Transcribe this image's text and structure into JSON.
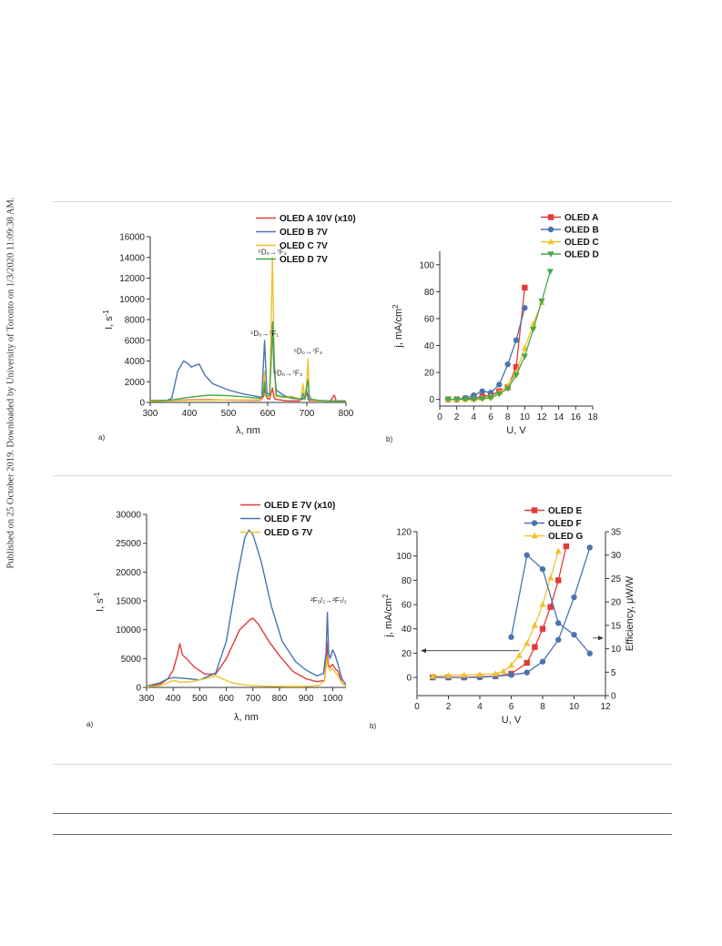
{
  "sidebar_note": "Published on 25 October 2019. Downloaded by University of Toronto on 1/3/2020 11:09:38 AM.",
  "colors": {
    "A": "#e23a3a",
    "B": "#4a74b0",
    "C": "#f2c12e",
    "D": "#45a84a",
    "E": "#e23a3a",
    "F": "#4a74b0",
    "G": "#f2c12e",
    "rule": "#d8dcc8",
    "rule_dark": "#6a6a6a"
  },
  "chart_data": [
    {
      "type": "line",
      "panel_label": "a)",
      "xlabel": "λ, nm",
      "ylabel_base": "I, s",
      "ylabel_sup": "-1",
      "xlim": [
        300,
        800
      ],
      "ylim": [
        0,
        16000
      ],
      "xticks": [
        300,
        400,
        500,
        600,
        700,
        800
      ],
      "yticks": [
        0,
        2000,
        4000,
        6000,
        8000,
        10000,
        12000,
        14000,
        16000
      ],
      "legend": [
        "OLED A 10V (x10)",
        "OLED B 7V",
        "OLED C 7V",
        "OLED D 7V"
      ],
      "annotations": [
        {
          "pre": "⁵D₀→⁷F₂",
          "x": 612,
          "y": 14300
        },
        {
          "pre": "⁵D₀→⁷F₁",
          "x": 592,
          "y": 6400
        },
        {
          "pre": "⁵D₀→⁷F₃",
          "x": 652,
          "y": 2600
        },
        {
          "pre": "⁵D₀→⁷F₄",
          "x": 703,
          "y": 4700
        }
      ],
      "series": [
        {
          "name": "OLED A 10V (x10)",
          "key": "A",
          "x": [
            300,
            350,
            400,
            450,
            500,
            550,
            580,
            590,
            594,
            598,
            605,
            612,
            616,
            620,
            650,
            680,
            690,
            700,
            705,
            720,
            760,
            770,
            775,
            800
          ],
          "y": [
            100,
            180,
            250,
            260,
            230,
            200,
            200,
            600,
            1900,
            400,
            300,
            1400,
            500,
            300,
            150,
            150,
            400,
            800,
            200,
            150,
            150,
            700,
            150,
            120
          ]
        },
        {
          "name": "OLED B 7V",
          "key": "B",
          "x": [
            300,
            340,
            355,
            370,
            385,
            395,
            405,
            415,
            425,
            440,
            460,
            500,
            540,
            570,
            585,
            592,
            598,
            605,
            612,
            616,
            622,
            640,
            660,
            690,
            700,
            705,
            720,
            760,
            800
          ],
          "y": [
            150,
            150,
            400,
            3000,
            4000,
            3800,
            3400,
            3600,
            3700,
            2600,
            1800,
            1200,
            800,
            600,
            500,
            6000,
            900,
            800,
            7500,
            3200,
            1200,
            700,
            400,
            300,
            1100,
            300,
            200,
            150,
            150
          ]
        },
        {
          "name": "OLED C 7V",
          "key": "C",
          "x": [
            300,
            350,
            400,
            450,
            500,
            550,
            580,
            588,
            592,
            596,
            605,
            609,
            612,
            616,
            620,
            640,
            660,
            685,
            690,
            695,
            700,
            703,
            706,
            712,
            730,
            760,
            800
          ],
          "y": [
            100,
            150,
            200,
            220,
            250,
            250,
            250,
            800,
            3000,
            500,
            500,
            8000,
            14000,
            6000,
            600,
            500,
            600,
            300,
            1800,
            400,
            2200,
            4200,
            800,
            200,
            150,
            120,
            100
          ]
        },
        {
          "name": "OLED D 7V",
          "key": "D",
          "x": [
            300,
            350,
            400,
            450,
            500,
            550,
            580,
            588,
            592,
            596,
            605,
            610,
            613,
            617,
            622,
            645,
            655,
            685,
            690,
            695,
            700,
            703,
            706,
            712,
            730,
            760,
            800
          ],
          "y": [
            200,
            200,
            500,
            700,
            650,
            500,
            400,
            700,
            2000,
            600,
            700,
            5000,
            7800,
            3500,
            700,
            500,
            500,
            300,
            900,
            300,
            1500,
            2200,
            600,
            300,
            200,
            150,
            150
          ]
        }
      ]
    },
    {
      "type": "line",
      "panel_label": "b)",
      "xlabel": "U, V",
      "ylabel_base": "j, mA/cm",
      "ylabel_sup": "2",
      "xlim": [
        0,
        18
      ],
      "ylim": [
        -5,
        110
      ],
      "xticks": [
        0,
        2,
        4,
        6,
        8,
        10,
        12,
        14,
        16,
        18
      ],
      "yticks": [
        0,
        20,
        40,
        60,
        80,
        100
      ],
      "legend": [
        "OLED A",
        "OLED B",
        "OLED C",
        "OLED D"
      ],
      "series": [
        {
          "name": "OLED A",
          "key": "A",
          "marker": "square",
          "x": [
            1,
            2,
            3,
            4,
            5,
            6,
            7,
            8,
            9,
            10
          ],
          "y": [
            0,
            0,
            0.5,
            1,
            2,
            3,
            6,
            9,
            24,
            83
          ]
        },
        {
          "name": "OLED B",
          "key": "B",
          "marker": "circle",
          "x": [
            1,
            2,
            3,
            4,
            5,
            6,
            7,
            8,
            9,
            10
          ],
          "y": [
            0,
            0,
            1,
            3,
            6,
            5,
            11,
            26,
            44,
            68
          ]
        },
        {
          "name": "OLED C",
          "key": "C",
          "marker": "triangle-up",
          "x": [
            1,
            2,
            3,
            4,
            5,
            6,
            7,
            8,
            9,
            10,
            11,
            12
          ],
          "y": [
            0,
            0,
            0,
            0,
            1,
            2,
            5,
            10,
            20,
            38,
            56,
            72
          ]
        },
        {
          "name": "OLED D",
          "key": "D",
          "marker": "triangle-down",
          "x": [
            1,
            2,
            3,
            4,
            5,
            6,
            7,
            8,
            9,
            10,
            11,
            12,
            13
          ],
          "y": [
            0,
            0,
            0,
            0,
            0.5,
            1,
            4,
            8,
            18,
            32,
            52,
            73,
            95
          ]
        }
      ]
    },
    {
      "type": "line",
      "panel_label": "a)",
      "xlabel": "λ, nm",
      "ylabel_base": "I, s",
      "ylabel_sup": "-1",
      "xlim": [
        300,
        1050
      ],
      "ylim": [
        0,
        30000
      ],
      "xticks": [
        300,
        400,
        500,
        600,
        700,
        800,
        900,
        1000
      ],
      "yticks": [
        0,
        5000,
        10000,
        15000,
        20000,
        25000,
        30000
      ],
      "legend": [
        "OLED E 7V (x10)",
        "OLED F 7V",
        "OLED G 7V"
      ],
      "annotations": [
        {
          "pre": "²F₅/₂→²F₇/₂",
          "x": 985,
          "y": 14700
        }
      ],
      "series": [
        {
          "name": "OLED E 7V (x10)",
          "key": "E",
          "x": [
            300,
            350,
            380,
            400,
            415,
            425,
            435,
            450,
            480,
            520,
            560,
            600,
            650,
            690,
            700,
            720,
            760,
            800,
            850,
            900,
            940,
            970,
            978,
            983,
            990,
            1000,
            1010,
            1020,
            1035,
            1050
          ],
          "y": [
            200,
            500,
            1500,
            3000,
            5500,
            7600,
            5600,
            5000,
            3500,
            2300,
            2300,
            5000,
            10000,
            11800,
            12000,
            11000,
            8000,
            5500,
            2800,
            1500,
            1000,
            1200,
            8000,
            4000,
            3500,
            4000,
            3200,
            2800,
            800,
            200
          ]
        },
        {
          "name": "OLED F 7V",
          "key": "F",
          "x": [
            300,
            350,
            380,
            400,
            440,
            500,
            560,
            600,
            640,
            670,
            685,
            700,
            730,
            770,
            810,
            860,
            900,
            940,
            965,
            975,
            980,
            985,
            990,
            1000,
            1010,
            1020,
            1035,
            1050
          ],
          "y": [
            200,
            800,
            1500,
            1700,
            1600,
            1300,
            2500,
            8000,
            19000,
            26000,
            27300,
            26500,
            22000,
            14000,
            8000,
            4500,
            3000,
            2000,
            2400,
            6000,
            13000,
            6000,
            5000,
            6500,
            5500,
            4000,
            1500,
            500
          ]
        },
        {
          "name": "OLED G 7V",
          "key": "G",
          "x": [
            300,
            350,
            380,
            400,
            430,
            470,
            520,
            560,
            590,
            620,
            660,
            700,
            760,
            820,
            880,
            920,
            950,
            970,
            978,
            983,
            990,
            1000,
            1010,
            1020,
            1035,
            1050
          ],
          "y": [
            100,
            300,
            800,
            1200,
            900,
            1000,
            1500,
            2000,
            1400,
            800,
            500,
            300,
            200,
            150,
            150,
            200,
            400,
            1200,
            5000,
            3500,
            3000,
            3200,
            2600,
            2000,
            700,
            200
          ]
        }
      ]
    },
    {
      "type": "line",
      "panel_label": "b)",
      "xlabel": "U, V",
      "ylabel_base": "j, mA/cm",
      "ylabel_sup": "2",
      "ylabel2": "Efficiency, μW/W",
      "xlim": [
        0,
        12
      ],
      "ylim": [
        -15,
        120
      ],
      "ylim2": [
        0,
        35
      ],
      "xticks": [
        0,
        2,
        4,
        6,
        8,
        10,
        12
      ],
      "yticks": [
        0,
        20,
        40,
        60,
        80,
        100,
        120
      ],
      "yticks2": [
        0,
        5,
        10,
        15,
        20,
        25,
        30,
        35
      ],
      "legend": [
        "OLED E",
        "OLED F",
        "OLED G"
      ],
      "series": [
        {
          "name": "OLED E",
          "key": "E",
          "marker": "square",
          "axis": "left",
          "x": [
            1,
            2,
            3,
            4,
            5,
            6,
            7,
            7.5,
            8,
            8.5,
            9,
            9.5
          ],
          "y": [
            0,
            0,
            0,
            0.5,
            1,
            3,
            12,
            25,
            40,
            58,
            80,
            108
          ]
        },
        {
          "name": "OLED F",
          "key": "F",
          "marker": "circle",
          "axis": "left",
          "x": [
            1,
            2,
            3,
            4,
            5,
            6,
            7,
            8,
            9,
            10,
            11
          ],
          "y": [
            0,
            0,
            0,
            0,
            1,
            2,
            4,
            13,
            31,
            66,
            107
          ]
        },
        {
          "name": "OLED G",
          "key": "G",
          "marker": "triangle-up",
          "axis": "left",
          "x": [
            1,
            2,
            3,
            4,
            5,
            5.5,
            6,
            6.5,
            7,
            7.5,
            8,
            8.5,
            9
          ],
          "y": [
            1,
            1.5,
            2,
            2.5,
            3,
            5,
            10,
            18,
            28,
            43,
            60,
            82,
            104
          ]
        },
        {
          "name": "",
          "key": "F",
          "marker": "circle",
          "axis": "right",
          "x": [
            6,
            7,
            8,
            9,
            10,
            11
          ],
          "y": [
            12.5,
            30,
            27,
            15.5,
            13,
            9
          ]
        }
      ]
    }
  ]
}
